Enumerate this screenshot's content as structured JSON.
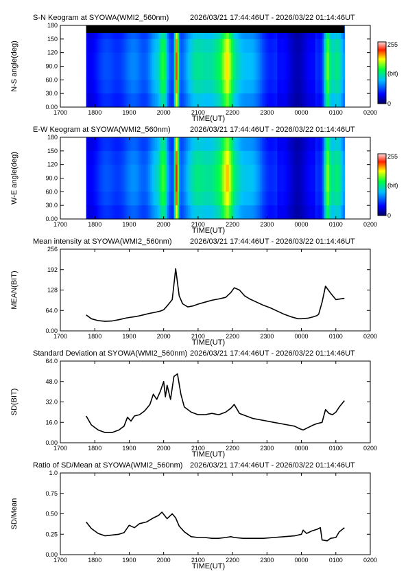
{
  "chart_data": [
    {
      "type": "heatmap",
      "title": "S-N Keogram at SYOWA(WMI2_560nm)",
      "time_range": "2026/03/21 17:44:46UT - 2026/03/22 01:14:46UT",
      "ylabel": "N-S angle(deg)",
      "xlabel": "TIME(UT)",
      "x_tick_labels": [
        "1700",
        "1800",
        "1900",
        "2000",
        "2100",
        "2200",
        "2300",
        "0000",
        "0100",
        "0200"
      ],
      "y_tick_labels": [
        "0.00",
        "30.0",
        "60.0",
        "90.0",
        "120",
        "150",
        "180"
      ],
      "xlim_hours": [
        17,
        26
      ],
      "ylim": [
        0,
        180
      ],
      "data_extent_hours": [
        17.75,
        25.25
      ],
      "colorbar": {
        "min_label": "0",
        "max_label": "255",
        "unit_label": "(bit)",
        "range": [
          0,
          255
        ]
      },
      "notes": "black band for angles above ~165 deg"
    },
    {
      "type": "heatmap",
      "title": "E-W Keogram at SYOWA(WMI2_560nm)",
      "time_range": "2026/03/21 17:44:46UT - 2026/03/22 01:14:46UT",
      "ylabel": "W-E angle(deg)",
      "xlabel": "TIME(UT)",
      "x_tick_labels": [
        "1700",
        "1800",
        "1900",
        "2000",
        "2100",
        "2200",
        "2300",
        "0000",
        "0100",
        "0200"
      ],
      "y_tick_labels": [
        "0.00",
        "30.0",
        "60.0",
        "90.0",
        "120",
        "150",
        "180"
      ],
      "xlim_hours": [
        17,
        26
      ],
      "ylim": [
        0,
        180
      ],
      "data_extent_hours": [
        17.75,
        25.25
      ],
      "colorbar": {
        "min_label": "0",
        "max_label": "255",
        "unit_label": "(bit)",
        "range": [
          0,
          255
        ]
      }
    },
    {
      "type": "line",
      "title": "Mean intensity at SYOWA(WMI2_560nm)",
      "time_range": "2026/03/21 17:44:46UT - 2026/03/22 01:14:46UT",
      "ylabel": "MEAN(BIT)",
      "xlabel": "TIME(UT)",
      "x_tick_labels": [
        "1700",
        "1800",
        "1900",
        "2000",
        "2100",
        "2200",
        "2300",
        "0000",
        "0100",
        "0200"
      ],
      "y_tick_labels": [
        "0.00",
        "64.0",
        "128",
        "192",
        "256"
      ],
      "xlim_hours": [
        17,
        26
      ],
      "ylim": [
        0,
        256
      ],
      "x": [
        17.75,
        17.9,
        18.1,
        18.3,
        18.5,
        18.7,
        18.9,
        19.0,
        19.2,
        19.4,
        19.6,
        19.75,
        19.9,
        20.0,
        20.1,
        20.25,
        20.35,
        20.45,
        20.55,
        20.7,
        20.85,
        21.0,
        21.2,
        21.4,
        21.6,
        21.8,
        21.95,
        22.05,
        22.2,
        22.35,
        22.5,
        22.7,
        22.9,
        23.1,
        23.3,
        23.5,
        23.7,
        23.9,
        24.0,
        24.2,
        24.35,
        24.45,
        24.5,
        24.6,
        24.7,
        24.85,
        25.0,
        25.25
      ],
      "values": [
        50,
        38,
        32,
        30,
        31,
        35,
        40,
        42,
        45,
        50,
        55,
        58,
        62,
        66,
        78,
        98,
        195,
        110,
        85,
        75,
        78,
        84,
        90,
        96,
        100,
        105,
        120,
        135,
        128,
        110,
        100,
        90,
        80,
        72,
        62,
        52,
        44,
        38,
        38,
        40,
        44,
        48,
        52,
        90,
        140,
        118,
        98,
        102
      ]
    },
    {
      "type": "line",
      "title": "Standard Deviation at SYOWA(WMI2_560nm)",
      "time_range": "2026/03/21 17:44:46UT - 2026/03/22 01:14:46UT",
      "ylabel": "SD(BIT)",
      "xlabel": "TIME(UT)",
      "x_tick_labels": [
        "1700",
        "1800",
        "1900",
        "2000",
        "2100",
        "2200",
        "2300",
        "0000",
        "0100",
        "0200"
      ],
      "y_tick_labels": [
        "0.00",
        "16.0",
        "32.0",
        "48.0",
        "64.0"
      ],
      "xlim_hours": [
        17,
        26
      ],
      "ylim": [
        0,
        64
      ],
      "x": [
        17.75,
        17.9,
        18.1,
        18.3,
        18.5,
        18.7,
        18.85,
        18.95,
        19.05,
        19.15,
        19.3,
        19.45,
        19.6,
        19.7,
        19.8,
        19.9,
        20.0,
        20.05,
        20.1,
        20.2,
        20.3,
        20.4,
        20.5,
        20.6,
        20.8,
        21.0,
        21.2,
        21.4,
        21.6,
        21.8,
        21.95,
        22.05,
        22.2,
        22.4,
        22.6,
        22.8,
        23.0,
        23.2,
        23.4,
        23.6,
        23.8,
        23.95,
        24.05,
        24.2,
        24.35,
        24.45,
        24.6,
        24.7,
        24.8,
        24.9,
        25.0,
        25.1,
        25.25
      ],
      "values": [
        21,
        14,
        10,
        8,
        8,
        10,
        13,
        20,
        17,
        21,
        22,
        25,
        30,
        38,
        34,
        40,
        48,
        36,
        45,
        34,
        52,
        54,
        38,
        28,
        24,
        22,
        22,
        23,
        22,
        24,
        27,
        30,
        23,
        21,
        19,
        18,
        17,
        16,
        15,
        14,
        13,
        11,
        10,
        12,
        14,
        15,
        16,
        26,
        23,
        22,
        24,
        28,
        33
      ]
    },
    {
      "type": "line",
      "title": "Ratio of SD/Mean at SYOWA(WMI2_560nm)",
      "time_range": "2026/03/21 17:44:46UT - 2026/03/22 01:14:46UT",
      "ylabel": "SD/Mean",
      "xlabel": "TIME(UT)",
      "x_tick_labels": [
        "1700",
        "1800",
        "1900",
        "2000",
        "2100",
        "2200",
        "2300",
        "0000",
        "0100",
        "0200"
      ],
      "y_tick_labels": [
        "0.00",
        "0.25",
        "0.50",
        "0.75",
        "1.0"
      ],
      "xlim_hours": [
        17,
        26
      ],
      "ylim": [
        0,
        1
      ],
      "x": [
        17.75,
        17.9,
        18.1,
        18.3,
        18.5,
        18.7,
        18.85,
        19.0,
        19.15,
        19.3,
        19.5,
        19.7,
        19.85,
        19.95,
        20.1,
        20.25,
        20.35,
        20.45,
        20.6,
        20.8,
        21.0,
        21.2,
        21.4,
        21.6,
        21.8,
        21.95,
        22.05,
        22.3,
        22.6,
        22.9,
        23.2,
        23.5,
        23.8,
        24.0,
        24.05,
        24.15,
        24.3,
        24.45,
        24.55,
        24.6,
        24.75,
        24.85,
        25.0,
        25.1,
        25.25
      ],
      "values": [
        0.4,
        0.32,
        0.26,
        0.23,
        0.24,
        0.25,
        0.27,
        0.36,
        0.33,
        0.38,
        0.4,
        0.45,
        0.48,
        0.52,
        0.44,
        0.5,
        0.45,
        0.35,
        0.28,
        0.22,
        0.21,
        0.21,
        0.2,
        0.2,
        0.21,
        0.22,
        0.21,
        0.2,
        0.2,
        0.2,
        0.21,
        0.22,
        0.23,
        0.25,
        0.3,
        0.26,
        0.29,
        0.31,
        0.33,
        0.18,
        0.17,
        0.2,
        0.21,
        0.28,
        0.33
      ]
    }
  ]
}
